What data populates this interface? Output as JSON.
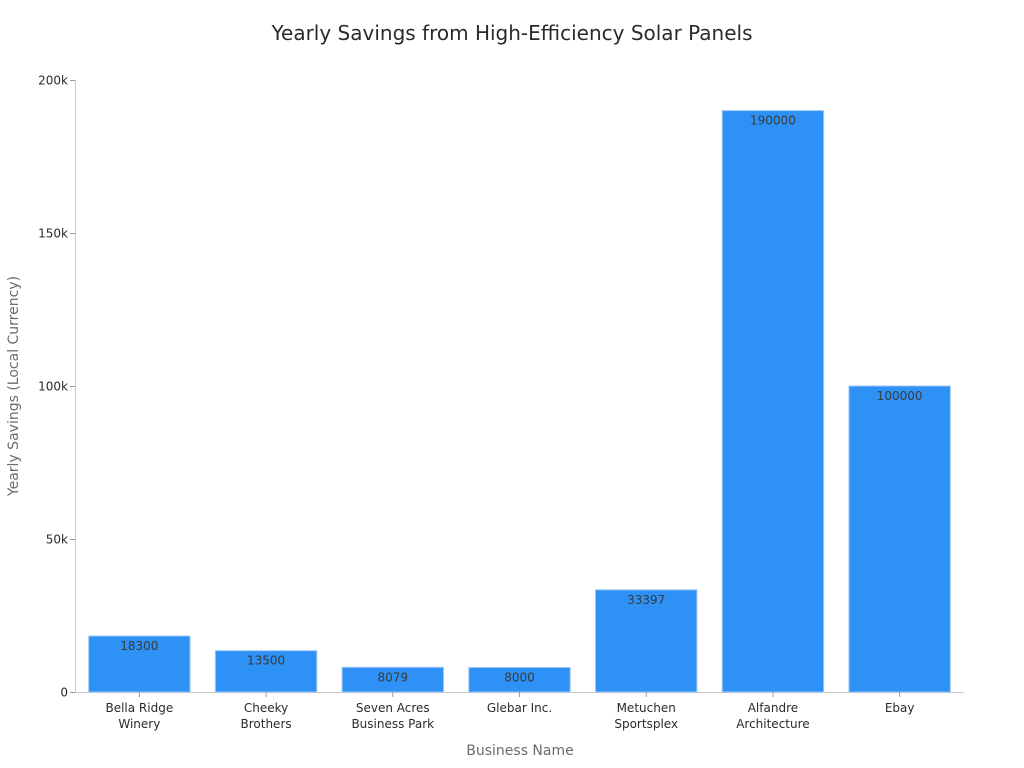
{
  "chart_data": {
    "type": "bar",
    "title": "Yearly Savings from High-Efficiency Solar Panels",
    "xlabel": "Business Name",
    "ylabel": "Yearly Savings (Local Currency)",
    "categories": [
      [
        "Bella Ridge",
        "Winery"
      ],
      [
        "Cheeky",
        "Brothers"
      ],
      [
        "Seven Acres",
        "Business Park"
      ],
      [
        "Glebar Inc."
      ],
      [
        "Metuchen",
        "Sportsplex"
      ],
      [
        "Alfandre",
        "Architecture"
      ],
      [
        "Ebay"
      ]
    ],
    "values": [
      18300,
      13500,
      8079,
      8000,
      33397,
      190000,
      100000
    ],
    "data_labels": [
      "18300",
      "13500",
      "8079",
      "8000",
      "33397",
      "190000",
      "100000"
    ],
    "ylim": [
      0,
      200000
    ],
    "yticks": [
      0,
      50000,
      100000,
      150000,
      200000
    ],
    "ytick_labels": [
      "0",
      "50k",
      "100k",
      "150k",
      "200k"
    ],
    "grid": false,
    "legend": "none",
    "bar_color": "#2d91f5"
  }
}
